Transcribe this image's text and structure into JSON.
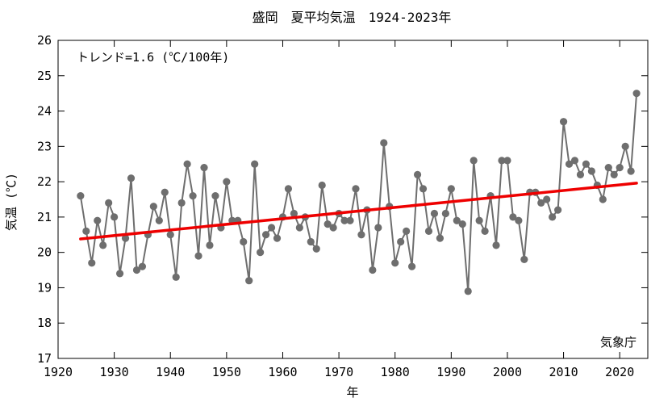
{
  "chart_data": {
    "type": "line",
    "title": "盛岡　夏平均気温　1924-2023年",
    "xlabel": "年",
    "ylabel": "気温 (℃)",
    "xlim": [
      1920,
      2025
    ],
    "ylim": [
      17,
      26
    ],
    "xticks": [
      1920,
      1930,
      1940,
      1950,
      1960,
      1970,
      1980,
      1990,
      2000,
      2010,
      2020
    ],
    "yticks": [
      17,
      18,
      19,
      20,
      21,
      22,
      23,
      24,
      25,
      26
    ],
    "grid": false,
    "trend_label": "トレンド=1.6 (℃/100年)",
    "source": "気象庁",
    "series": [
      {
        "color": "#6e6e6e",
        "x": [
          1924,
          1925,
          1926,
          1927,
          1928,
          1929,
          1930,
          1931,
          1932,
          1933,
          1934,
          1935,
          1936,
          1937,
          1938,
          1939,
          1940,
          1941,
          1942,
          1943,
          1944,
          1945,
          1946,
          1947,
          1948,
          1949,
          1950,
          1951,
          1952,
          1953,
          1954,
          1955,
          1956,
          1957,
          1958,
          1959,
          1960,
          1961,
          1962,
          1963,
          1964,
          1965,
          1966,
          1967,
          1968,
          1969,
          1970,
          1971,
          1972,
          1973,
          1974,
          1975,
          1976,
          1977,
          1978,
          1979,
          1980,
          1981,
          1982,
          1983,
          1984,
          1985,
          1986,
          1987,
          1988,
          1989,
          1990,
          1991,
          1992,
          1993,
          1994,
          1995,
          1996,
          1997,
          1998,
          1999,
          2000,
          2001,
          2002,
          2003,
          2004,
          2005,
          2006,
          2007,
          2008,
          2009,
          2010,
          2011,
          2012,
          2013,
          2014,
          2015,
          2016,
          2017,
          2018,
          2019,
          2020,
          2021,
          2022,
          2023
        ],
        "y": [
          21.6,
          20.6,
          19.7,
          20.9,
          20.2,
          21.4,
          21.0,
          19.4,
          20.4,
          22.1,
          19.5,
          19.6,
          20.5,
          21.3,
          20.9,
          21.7,
          20.5,
          19.3,
          21.4,
          22.5,
          21.6,
          19.9,
          22.4,
          20.2,
          21.6,
          20.7,
          22.0,
          20.9,
          20.9,
          20.3,
          19.2,
          22.5,
          20.0,
          20.5,
          20.7,
          20.4,
          21.0,
          21.8,
          21.1,
          20.7,
          21.0,
          20.3,
          20.1,
          21.9,
          20.8,
          20.7,
          21.1,
          20.9,
          20.9,
          21.8,
          20.5,
          21.2,
          19.5,
          20.7,
          23.1,
          21.3,
          19.7,
          20.3,
          20.6,
          19.6,
          22.2,
          21.8,
          20.6,
          21.1,
          20.4,
          21.1,
          21.8,
          20.9,
          20.8,
          18.9,
          22.6,
          20.9,
          20.6,
          21.6,
          20.2,
          22.6,
          22.6,
          21.0,
          20.9,
          19.8,
          21.7,
          21.7,
          21.4,
          21.5,
          21.0,
          21.2,
          23.7,
          22.5,
          22.6,
          22.2,
          22.5,
          22.3,
          21.9,
          21.5,
          22.4,
          22.2,
          22.4,
          23.0,
          22.3,
          24.5
        ]
      },
      {
        "color": "#ee0000",
        "type": "trend",
        "x": [
          1924,
          2023
        ],
        "y": [
          20.38,
          21.96
        ]
      }
    ]
  }
}
